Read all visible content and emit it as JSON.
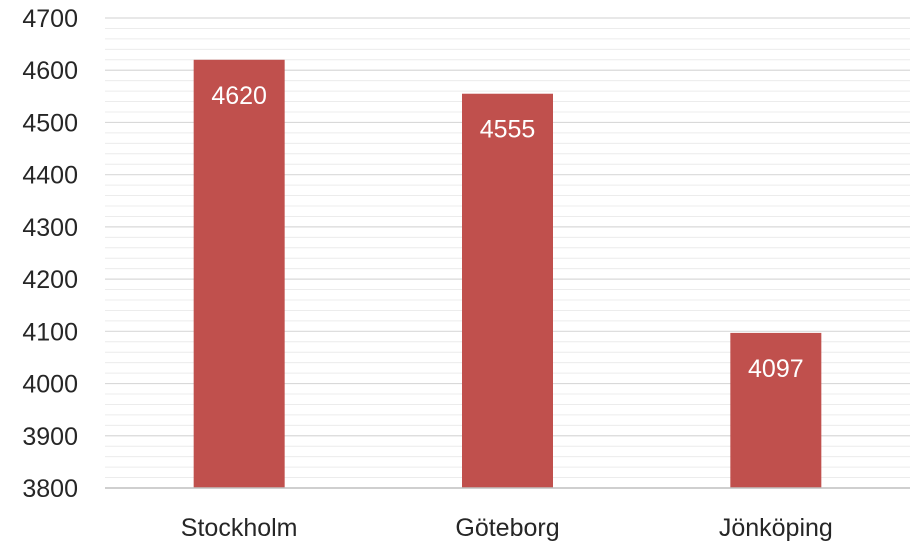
{
  "chart_data": {
    "type": "bar",
    "title": "",
    "xlabel": "",
    "ylabel": "",
    "categories": [
      "Stockholm",
      "Göteborg",
      "Jönköping"
    ],
    "values": [
      4620,
      4555,
      4097
    ],
    "ylim": [
      3800,
      4700
    ],
    "y_ticks": [
      "3800",
      "3900",
      "4000",
      "4100",
      "4200",
      "4300",
      "4400",
      "4500",
      "4600",
      "4700"
    ],
    "data_labels": [
      "4620",
      "4555",
      "4097"
    ],
    "grid": true,
    "minor_grid": true,
    "legend": "none",
    "colors": {
      "bar": "#c0504d",
      "data_label": "#ffffff",
      "axis_text": "#262626",
      "major_grid": "#d9d9d9",
      "minor_grid": "#ececec",
      "axis_line": "#bfbfbf"
    }
  }
}
